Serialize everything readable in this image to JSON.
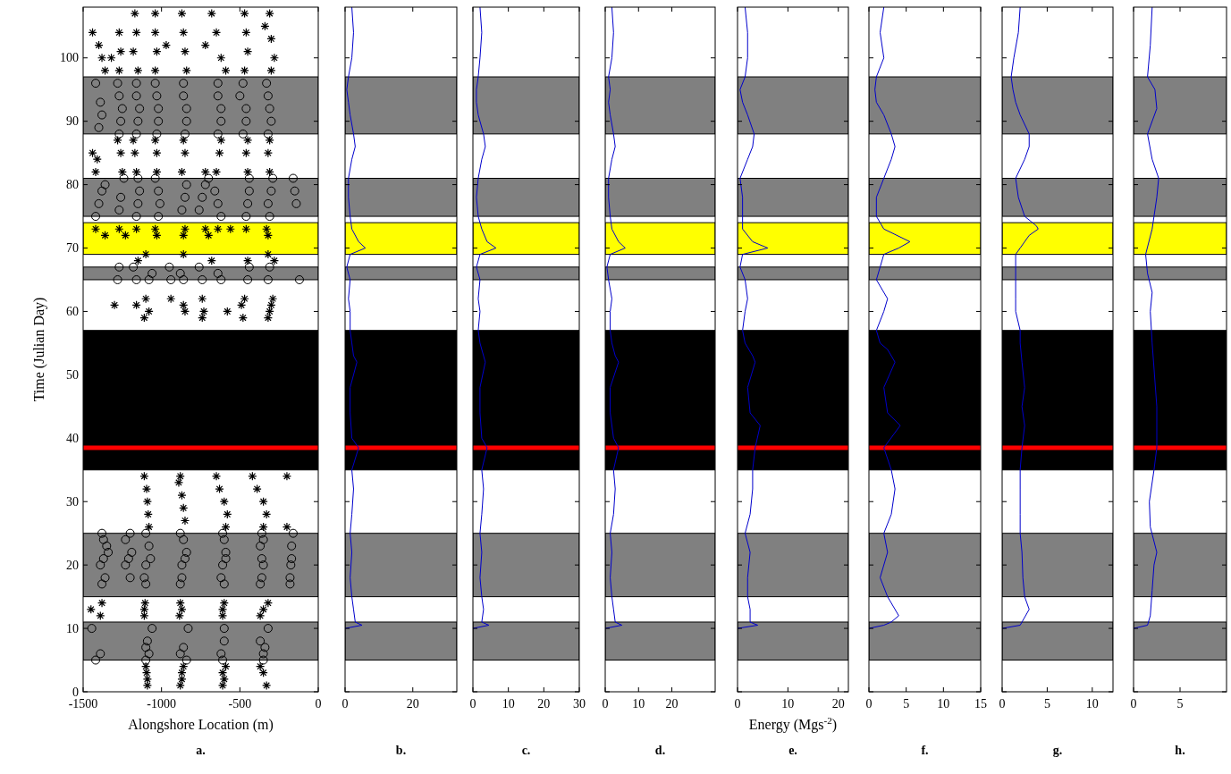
{
  "chart_data": [
    {
      "type": "scatter",
      "xlabel": "Alongshore Location (m)",
      "ylabel": "Time (Julian Day)",
      "annotations": [
        "a."
      ],
      "xlim": [
        -1500,
        0
      ],
      "xticks": [
        -1500,
        -1000,
        -500,
        0
      ],
      "ylim": [
        0,
        108
      ],
      "yticks": [
        0,
        10,
        20,
        30,
        40,
        50,
        60,
        70,
        80,
        90,
        100
      ],
      "bands": [
        {
          "axis": "y",
          "from": 5,
          "to": 11,
          "color": "#808080"
        },
        {
          "axis": "y",
          "from": 15,
          "to": 25,
          "color": "#808080"
        },
        {
          "axis": "y",
          "from": 35,
          "to": 57,
          "color": "#000000"
        },
        {
          "axis": "y",
          "from": 65,
          "to": 67,
          "color": "#808080"
        },
        {
          "axis": "y",
          "from": 69,
          "to": 74,
          "color": "#ffff00"
        },
        {
          "axis": "y",
          "from": 75,
          "to": 81,
          "color": "#808080"
        },
        {
          "axis": "y",
          "from": 88,
          "to": 97,
          "color": "#808080"
        }
      ],
      "ref_lines": [
        {
          "axis": "y",
          "value": 38.5,
          "color": "#ff0000"
        }
      ],
      "series": [
        {
          "color": "#000000",
          "marker": "cross",
          "x": [
            -1090,
            -1090,
            -1095,
            -1100,
            -1110,
            -1110,
            -1105,
            -1080,
            -1085,
            -1090,
            -1095,
            -1110,
            -880,
            -870,
            -870,
            -860,
            -885,
            -870,
            -880,
            -850,
            -860,
            -870,
            -890,
            -880,
            -610,
            -600,
            -610,
            -590,
            -610,
            -610,
            -600,
            -590,
            -580,
            -600,
            -630,
            -650,
            -330,
            -350,
            -370,
            -370,
            -350,
            -320,
            -350,
            -330,
            -350,
            -390,
            -420,
            -1450,
            -1380,
            -1390,
            -200,
            -200,
            -1300,
            -1160,
            -1100,
            -1080,
            -1110,
            -940,
            -860,
            -850,
            -740,
            -730,
            -740,
            -580,
            -470,
            -490,
            -480,
            -290,
            -300,
            -310,
            -320,
            -1100,
            -1150,
            -1420,
            -1360,
            -1270,
            -1230,
            -1160,
            -1040,
            -1030,
            -850,
            -860,
            -860,
            -720,
            -700,
            -680,
            -640,
            -560,
            -460,
            -450,
            -320,
            -330,
            -320,
            -280,
            -1420,
            -1440,
            -1410,
            -1280,
            -1250,
            -1260,
            -1180,
            -1160,
            -1170,
            -1040,
            -1030,
            -1030,
            -860,
            -870,
            -850,
            -720,
            -620,
            -650,
            -630,
            -450,
            -450,
            -460,
            -310,
            -310,
            -320,
            -1440,
            -1400,
            -1380,
            -1360,
            -1270,
            -1260,
            -1270,
            -1320,
            -1170,
            -1160,
            -1180,
            -1150,
            -1040,
            -1040,
            -1030,
            -1040,
            -970,
            -870,
            -860,
            -850,
            -840,
            -720,
            -680,
            -650,
            -620,
            -590,
            -470,
            -460,
            -450,
            -470,
            -340,
            -310,
            -300,
            -280,
            -300
          ],
          "values": [
            1,
            2,
            3,
            4,
            12,
            13,
            14,
            26,
            28,
            30,
            32,
            34,
            1,
            2,
            3,
            4,
            12,
            13,
            14,
            27,
            29,
            31,
            33,
            34,
            1,
            2,
            3,
            4,
            12,
            13,
            14,
            26,
            28,
            30,
            32,
            34,
            1,
            3,
            4,
            12,
            13,
            14,
            26,
            28,
            30,
            32,
            34,
            13,
            14,
            12,
            34,
            26,
            61,
            61,
            62,
            60,
            59,
            62,
            61,
            60,
            62,
            60,
            59,
            60,
            62,
            61,
            59,
            62,
            61,
            60,
            59,
            69,
            68,
            73,
            72,
            73,
            72,
            73,
            73,
            72,
            73,
            72,
            69,
            73,
            72,
            68,
            73,
            73,
            73,
            68,
            72,
            73,
            69,
            68,
            82,
            85,
            84,
            87,
            82,
            85,
            87,
            82,
            85,
            87,
            82,
            85,
            87,
            82,
            85,
            82,
            87,
            82,
            85,
            87,
            82,
            85,
            87,
            82,
            85,
            104,
            102,
            100,
            98,
            104,
            101,
            98,
            100,
            107,
            104,
            101,
            98,
            107,
            104,
            101,
            98,
            102,
            107,
            104,
            101,
            98,
            102,
            107,
            104,
            100,
            98,
            107,
            104,
            101,
            98,
            105,
            107,
            103,
            100,
            98
          ]
        },
        {
          "color": "#000000",
          "marker": "circle",
          "x": [
            -1445,
            -1420,
            -1390,
            -1100,
            -1090,
            -1080,
            -1060,
            -1100,
            -880,
            -860,
            -840,
            -830,
            -620,
            -600,
            -600,
            -610,
            -370,
            -340,
            -350,
            -320,
            -350,
            -1380,
            -1370,
            -1350,
            -1340,
            -1370,
            -1390,
            -1360,
            -1380,
            -1230,
            -1200,
            -1190,
            -1210,
            -1230,
            -1200,
            -1100,
            -1080,
            -1070,
            -1100,
            -1110,
            -1100,
            -880,
            -860,
            -840,
            -850,
            -870,
            -870,
            -880,
            -610,
            -600,
            -590,
            -590,
            -610,
            -620,
            -600,
            -360,
            -350,
            -370,
            -360,
            -350,
            -360,
            -370,
            -160,
            -170,
            -170,
            -175,
            -180,
            -180,
            -1270,
            -1280,
            -1180,
            -1160,
            -1060,
            -1080,
            -950,
            -940,
            -880,
            -860,
            -760,
            -740,
            -640,
            -620,
            -440,
            -450,
            -310,
            -320,
            -120,
            -1420,
            -1400,
            -1380,
            -1360,
            -1270,
            -1260,
            -1240,
            -1160,
            -1150,
            -1140,
            -1150,
            -1020,
            -1010,
            -1020,
            -1040,
            -870,
            -850,
            -840,
            -760,
            -740,
            -720,
            -620,
            -640,
            -660,
            -700,
            -460,
            -450,
            -440,
            -440,
            -310,
            -320,
            -300,
            -290,
            -160,
            -150,
            -140,
            -1400,
            -1380,
            -1390,
            -1420,
            -1280,
            -1270,
            -1250,
            -1260,
            -1270,
            -1160,
            -1160,
            -1140,
            -1150,
            -1160,
            -1040,
            -1030,
            -1020,
            -1020,
            -1030,
            -860,
            -860,
            -840,
            -840,
            -850,
            -640,
            -640,
            -620,
            -620,
            -640,
            -480,
            -500,
            -460,
            -460,
            -480,
            -330,
            -320,
            -310,
            -300,
            -320
          ],
          "values": [
            10,
            5,
            6,
            7,
            8,
            6,
            10,
            5,
            6,
            7,
            5,
            10,
            6,
            8,
            10,
            5,
            8,
            7,
            5,
            10,
            6,
            25,
            24,
            23,
            22,
            21,
            20,
            18,
            17,
            24,
            25,
            22,
            21,
            20,
            18,
            25,
            23,
            21,
            20,
            18,
            17,
            25,
            24,
            22,
            21,
            20,
            18,
            17,
            25,
            24,
            22,
            21,
            20,
            18,
            17,
            25,
            24,
            23,
            21,
            20,
            18,
            17,
            25,
            23,
            21,
            20,
            18,
            17,
            67,
            65,
            67,
            65,
            66,
            65,
            67,
            65,
            66,
            65,
            67,
            65,
            66,
            65,
            67,
            65,
            67,
            65,
            65,
            75,
            77,
            79,
            80,
            76,
            78,
            81,
            75,
            77,
            79,
            81,
            75,
            77,
            79,
            81,
            76,
            78,
            80,
            76,
            78,
            80,
            75,
            77,
            79,
            81,
            75,
            77,
            79,
            81,
            75,
            77,
            79,
            81,
            81,
            79,
            77,
            89,
            91,
            93,
            96,
            96,
            94,
            92,
            90,
            88,
            96,
            94,
            92,
            90,
            88,
            96,
            94,
            92,
            90,
            88,
            96,
            94,
            92,
            90,
            88,
            96,
            94,
            92,
            90,
            88,
            96,
            94,
            92,
            90,
            88,
            96,
            94,
            92,
            90,
            88
          ]
        }
      ]
    },
    {
      "type": "line",
      "annotations": [
        "b."
      ],
      "tick_labels": "x",
      "xlim": [
        0,
        33
      ],
      "xticks": [
        0,
        20
      ],
      "ylim": [
        0,
        108
      ],
      "yticks": [
        0,
        10,
        20,
        30,
        40,
        50,
        60,
        70,
        80,
        90,
        100
      ],
      "bands": [
        {
          "axis": "y",
          "from": 5,
          "to": 11,
          "color": "#808080"
        },
        {
          "axis": "y",
          "from": 15,
          "to": 25,
          "color": "#808080"
        },
        {
          "axis": "y",
          "from": 35,
          "to": 57,
          "color": "#000000"
        },
        {
          "axis": "y",
          "from": 65,
          "to": 67,
          "color": "#808080"
        },
        {
          "axis": "y",
          "from": 69,
          "to": 74,
          "color": "#ffff00"
        },
        {
          "axis": "y",
          "from": 75,
          "to": 81,
          "color": "#808080"
        },
        {
          "axis": "y",
          "from": 88,
          "to": 97,
          "color": "#808080"
        }
      ],
      "ref_lines": [
        {
          "axis": "y",
          "value": 38.5,
          "color": "#ff0000"
        }
      ],
      "series": [
        {
          "color": "#0000cc",
          "x": [
            0,
            5,
            3,
            2.5,
            2,
            1.5,
            2,
            1.5,
            2,
            2.5,
            2,
            4,
            2,
            1.5,
            1.5,
            3.5,
            2.5,
            2,
            1.5,
            1.5,
            1,
            1.5,
            0.5,
            1.5,
            6,
            4,
            2,
            1.5,
            1,
            1,
            2,
            3,
            2.5,
            1.5,
            1,
            0.5,
            1,
            2,
            2.5,
            2
          ],
          "values": [
            10,
            10.5,
            11,
            13,
            15,
            18,
            22,
            25,
            28,
            32,
            35,
            38.5,
            40,
            44,
            48,
            52,
            53,
            55,
            57,
            60,
            62,
            65,
            67,
            69,
            70,
            71,
            73,
            75,
            78,
            81,
            84,
            86,
            88,
            91,
            93,
            95,
            97,
            100,
            104,
            108
          ]
        }
      ]
    },
    {
      "type": "line",
      "annotations": [
        "c."
      ],
      "tick_labels": "x",
      "xlim": [
        0,
        30
      ],
      "xticks": [
        0,
        10,
        20,
        30
      ],
      "ylim": [
        0,
        108
      ],
      "yticks": [
        0,
        10,
        20,
        30,
        40,
        50,
        60,
        70,
        80,
        90,
        100
      ],
      "bands": [
        {
          "axis": "y",
          "from": 5,
          "to": 11,
          "color": "#808080"
        },
        {
          "axis": "y",
          "from": 15,
          "to": 25,
          "color": "#808080"
        },
        {
          "axis": "y",
          "from": 35,
          "to": 57,
          "color": "#000000"
        },
        {
          "axis": "y",
          "from": 65,
          "to": 67,
          "color": "#808080"
        },
        {
          "axis": "y",
          "from": 69,
          "to": 74,
          "color": "#ffff00"
        },
        {
          "axis": "y",
          "from": 75,
          "to": 81,
          "color": "#808080"
        },
        {
          "axis": "y",
          "from": 88,
          "to": 97,
          "color": "#808080"
        }
      ],
      "ref_lines": [
        {
          "axis": "y",
          "value": 38.5,
          "color": "#ff0000"
        }
      ],
      "series": [
        {
          "color": "#0000cc",
          "x": [
            0,
            4.5,
            2.5,
            3,
            2.5,
            2,
            2.5,
            2,
            2.5,
            3,
            2.5,
            4,
            2.5,
            2,
            2,
            3.5,
            3,
            2,
            1.5,
            2,
            1.5,
            2,
            1,
            2,
            6.5,
            4,
            2.5,
            1.5,
            1,
            1.5,
            2.5,
            3.5,
            3,
            1.5,
            1,
            1,
            1.5,
            2,
            2.5,
            2
          ],
          "values": [
            10,
            10.5,
            11,
            13,
            15,
            18,
            22,
            25,
            28,
            32,
            35,
            38.5,
            40,
            44,
            48,
            52,
            53,
            55,
            57,
            60,
            62,
            65,
            67,
            69,
            70,
            71,
            73,
            75,
            78,
            81,
            84,
            86,
            88,
            91,
            93,
            95,
            97,
            100,
            104,
            108
          ]
        }
      ]
    },
    {
      "type": "line",
      "annotations": [
        "d."
      ],
      "tick_labels": "x",
      "xlim": [
        0,
        33
      ],
      "xticks": [
        0,
        10,
        20
      ],
      "ylim": [
        0,
        108
      ],
      "yticks": [
        0,
        10,
        20,
        30,
        40,
        50,
        60,
        70,
        80,
        90,
        100
      ],
      "bands": [
        {
          "axis": "y",
          "from": 5,
          "to": 11,
          "color": "#808080"
        },
        {
          "axis": "y",
          "from": 15,
          "to": 25,
          "color": "#808080"
        },
        {
          "axis": "y",
          "from": 35,
          "to": 57,
          "color": "#000000"
        },
        {
          "axis": "y",
          "from": 65,
          "to": 67,
          "color": "#808080"
        },
        {
          "axis": "y",
          "from": 69,
          "to": 74,
          "color": "#ffff00"
        },
        {
          "axis": "y",
          "from": 75,
          "to": 81,
          "color": "#808080"
        },
        {
          "axis": "y",
          "from": 88,
          "to": 97,
          "color": "#808080"
        }
      ],
      "ref_lines": [
        {
          "axis": "y",
          "value": 38.5,
          "color": "#ff0000"
        }
      ],
      "series": [
        {
          "color": "#0000cc",
          "x": [
            0,
            5,
            3,
            2.5,
            2,
            1.5,
            2,
            1.5,
            2.5,
            3,
            2.5,
            4,
            2.5,
            1.5,
            1.5,
            4,
            3,
            2,
            1.5,
            1.5,
            2,
            1,
            0.5,
            1.5,
            6,
            4,
            2,
            1.5,
            1,
            1,
            2,
            3,
            2.5,
            1.5,
            1,
            1.5,
            1,
            2,
            2.5,
            2
          ],
          "values": [
            10,
            10.5,
            11,
            13,
            15,
            18,
            22,
            25,
            28,
            32,
            35,
            38.5,
            40,
            44,
            48,
            52,
            53,
            55,
            57,
            60,
            62,
            65,
            67,
            69,
            70,
            71,
            73,
            75,
            78,
            81,
            84,
            86,
            88,
            91,
            93,
            95,
            97,
            100,
            104,
            108
          ]
        }
      ]
    },
    {
      "type": "line",
      "xlabel": "Energy (Mgs$^{-2}$)",
      "annotations": [
        "e."
      ],
      "tick_labels": "x",
      "xlim": [
        0,
        22
      ],
      "xticks": [
        0,
        10,
        20
      ],
      "ylim": [
        0,
        108
      ],
      "yticks": [
        0,
        10,
        20,
        30,
        40,
        50,
        60,
        70,
        80,
        90,
        100
      ],
      "bands": [
        {
          "axis": "y",
          "from": 5,
          "to": 11,
          "color": "#808080"
        },
        {
          "axis": "y",
          "from": 15,
          "to": 25,
          "color": "#808080"
        },
        {
          "axis": "y",
          "from": 35,
          "to": 57,
          "color": "#000000"
        },
        {
          "axis": "y",
          "from": 65,
          "to": 67,
          "color": "#808080"
        },
        {
          "axis": "y",
          "from": 69,
          "to": 74,
          "color": "#ffff00"
        },
        {
          "axis": "y",
          "from": 75,
          "to": 81,
          "color": "#808080"
        },
        {
          "axis": "y",
          "from": 88,
          "to": 97,
          "color": "#808080"
        }
      ],
      "ref_lines": [
        {
          "axis": "y",
          "value": 38.5,
          "color": "#ff0000"
        }
      ],
      "series": [
        {
          "color": "#0000cc",
          "x": [
            0,
            4,
            2.5,
            2.5,
            2,
            2,
            2.5,
            1.5,
            2.5,
            3,
            3,
            3.5,
            4.5,
            2.5,
            2,
            3.5,
            3,
            1.5,
            1,
            1.5,
            2,
            1.5,
            0.5,
            1,
            6,
            3,
            1,
            1,
            1,
            0.5,
            2,
            3,
            3.3,
            2,
            1,
            0.5,
            1.5,
            2,
            2,
            1.5
          ],
          "values": [
            10,
            10.5,
            11,
            13,
            15,
            18,
            22,
            25,
            28,
            32,
            35,
            38.5,
            42,
            44,
            48,
            52,
            53,
            55,
            57,
            60,
            62,
            65,
            67,
            69,
            70,
            71,
            73,
            75,
            78,
            81,
            84,
            86,
            88,
            91,
            93,
            95,
            97,
            100,
            104,
            108
          ]
        }
      ]
    },
    {
      "type": "line",
      "annotations": [
        "f."
      ],
      "tick_labels": "x",
      "xlim": [
        0,
        15
      ],
      "xticks": [
        0,
        5,
        10,
        15
      ],
      "ylim": [
        0,
        108
      ],
      "yticks": [
        0,
        10,
        20,
        30,
        40,
        50,
        60,
        70,
        80,
        90,
        100
      ],
      "bands": [
        {
          "axis": "y",
          "from": 5,
          "to": 11,
          "color": "#808080"
        },
        {
          "axis": "y",
          "from": 15,
          "to": 25,
          "color": "#808080"
        },
        {
          "axis": "y",
          "from": 35,
          "to": 57,
          "color": "#000000"
        },
        {
          "axis": "y",
          "from": 65,
          "to": 67,
          "color": "#808080"
        },
        {
          "axis": "y",
          "from": 69,
          "to": 74,
          "color": "#ffff00"
        },
        {
          "axis": "y",
          "from": 75,
          "to": 81,
          "color": "#808080"
        },
        {
          "axis": "y",
          "from": 88,
          "to": 97,
          "color": "#808080"
        }
      ],
      "ref_lines": [
        {
          "axis": "y",
          "value": 38.5,
          "color": "#ff0000"
        }
      ],
      "series": [
        {
          "color": "#0000cc",
          "x": [
            0,
            2,
            3,
            4,
            2.5,
            1.5,
            2.5,
            2,
            3,
            3.5,
            3,
            2,
            4.2,
            2.5,
            2,
            3.5,
            2.5,
            1.5,
            1,
            2,
            2.5,
            1,
            1.5,
            2,
            4,
            5.5,
            2,
            1,
            1,
            2,
            3,
            3.5,
            3,
            2,
            1,
            0.8,
            1,
            2,
            1.5,
            2
          ],
          "values": [
            10,
            10.5,
            11,
            12,
            15,
            18,
            22,
            25,
            28,
            32,
            35,
            38.5,
            42,
            44,
            48,
            52,
            54,
            55,
            57,
            60,
            62,
            65,
            67,
            69,
            70,
            71,
            73,
            75,
            78,
            81,
            84,
            86,
            88,
            91,
            93,
            95,
            97,
            100,
            104,
            108
          ]
        }
      ]
    },
    {
      "type": "line",
      "annotations": [
        "g."
      ],
      "tick_labels": "x",
      "xlim": [
        0,
        12.3
      ],
      "xticks": [
        0,
        5,
        10
      ],
      "ylim": [
        0,
        108
      ],
      "yticks": [
        0,
        10,
        20,
        30,
        40,
        50,
        60,
        70,
        80,
        90,
        100
      ],
      "bands": [
        {
          "axis": "y",
          "from": 5,
          "to": 11,
          "color": "#808080"
        },
        {
          "axis": "y",
          "from": 15,
          "to": 25,
          "color": "#808080"
        },
        {
          "axis": "y",
          "from": 35,
          "to": 57,
          "color": "#000000"
        },
        {
          "axis": "y",
          "from": 65,
          "to": 67,
          "color": "#808080"
        },
        {
          "axis": "y",
          "from": 69,
          "to": 74,
          "color": "#ffff00"
        },
        {
          "axis": "y",
          "from": 75,
          "to": 81,
          "color": "#808080"
        },
        {
          "axis": "y",
          "from": 88,
          "to": 97,
          "color": "#808080"
        }
      ],
      "ref_lines": [
        {
          "axis": "y",
          "value": 38.5,
          "color": "#ff0000"
        }
      ],
      "series": [
        {
          "color": "#0000cc",
          "x": [
            0,
            2,
            3,
            2.5,
            2.3,
            2.2,
            2,
            2,
            2,
            2,
            2.2,
            2.5,
            2.2,
            2.5,
            2.2,
            2,
            2,
            1.5,
            1.5,
            1.5,
            1.5,
            1.5,
            2,
            3,
            4,
            3.8,
            2.5,
            1.8,
            1.5,
            2.5,
            3,
            3,
            2,
            1.5,
            1.2,
            1,
            1.3,
            1.8,
            2
          ],
          "values": [
            10,
            10.5,
            13,
            15,
            18,
            22,
            25,
            28,
            32,
            35,
            38.5,
            42,
            45,
            48,
            52,
            55,
            57,
            60,
            62,
            65,
            67,
            69,
            70,
            72,
            73,
            73.5,
            75,
            78,
            81,
            84,
            86,
            88,
            91,
            93,
            95,
            97,
            100,
            104,
            108
          ]
        }
      ]
    },
    {
      "type": "line",
      "annotations": [
        "h."
      ],
      "tick_labels": "x",
      "xlim": [
        0,
        10
      ],
      "xticks": [
        0,
        5
      ],
      "ylim": [
        0,
        108
      ],
      "yticks": [
        0,
        10,
        20,
        30,
        40,
        50,
        60,
        70,
        80,
        90,
        100
      ],
      "bands": [
        {
          "axis": "y",
          "from": 5,
          "to": 11,
          "color": "#808080"
        },
        {
          "axis": "y",
          "from": 15,
          "to": 25,
          "color": "#808080"
        },
        {
          "axis": "y",
          "from": 35,
          "to": 57,
          "color": "#000000"
        },
        {
          "axis": "y",
          "from": 65,
          "to": 67,
          "color": "#808080"
        },
        {
          "axis": "y",
          "from": 69,
          "to": 74,
          "color": "#ffff00"
        },
        {
          "axis": "y",
          "from": 75,
          "to": 81,
          "color": "#808080"
        },
        {
          "axis": "y",
          "from": 88,
          "to": 97,
          "color": "#808080"
        }
      ],
      "ref_lines": [
        {
          "axis": "y",
          "value": 38.5,
          "color": "#ff0000"
        }
      ],
      "series": [
        {
          "color": "#0000cc",
          "x": [
            0,
            1.5,
            1.8,
            2,
            2.2,
            2.5,
            1.8,
            1.7,
            2.2,
            2.5,
            2.5,
            2,
            1.8,
            2,
            1.5,
            1.3,
            2,
            2.5,
            2.7,
            2,
            1.5,
            2.5,
            2.3,
            1.5,
            1.8,
            2
          ],
          "values": [
            10,
            10.5,
            12,
            16,
            20,
            22,
            26,
            30,
            35,
            38.5,
            45,
            55,
            60,
            63,
            66,
            69,
            73,
            78,
            81,
            84,
            88,
            92,
            95,
            97,
            102,
            108
          ]
        }
      ]
    }
  ]
}
